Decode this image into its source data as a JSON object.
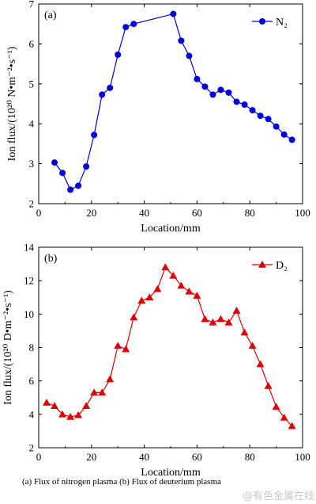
{
  "chart_data": [
    {
      "type": "line",
      "panel_label": "(a)",
      "xlabel": "Location/mm",
      "ylabel": "Ion flux/(10²⁰ N•m⁻²•s⁻¹)",
      "xlim": [
        0,
        100
      ],
      "ylim": [
        2,
        7
      ],
      "xticks": [
        0,
        20,
        40,
        60,
        80,
        100
      ],
      "yticks": [
        2,
        3,
        4,
        5,
        6,
        7
      ],
      "legend_position": "top-right",
      "color": "#0000dd",
      "marker": "circle",
      "series": [
        {
          "name": "N₂",
          "x": [
            6,
            9,
            12,
            15,
            18,
            21,
            24,
            27,
            30,
            33,
            36,
            51,
            54,
            57,
            60,
            63,
            66,
            69,
            72,
            75,
            78,
            81,
            84,
            87,
            90,
            93,
            96
          ],
          "y": [
            3.03,
            2.77,
            2.35,
            2.45,
            2.93,
            3.72,
            4.73,
            4.9,
            5.73,
            6.42,
            6.5,
            6.75,
            6.08,
            5.7,
            5.12,
            4.93,
            4.73,
            4.85,
            4.78,
            4.55,
            4.48,
            4.34,
            4.2,
            4.12,
            3.93,
            3.73,
            3.6
          ]
        }
      ]
    },
    {
      "type": "line",
      "panel_label": "(b)",
      "xlabel": "Location/mm",
      "ylabel": "Ion flux/(10²⁰ D•m⁻²•s⁻¹)",
      "xlim": [
        0,
        100
      ],
      "ylim": [
        2,
        14
      ],
      "xticks": [
        0,
        20,
        40,
        60,
        80,
        100
      ],
      "yticks": [
        2,
        4,
        6,
        8,
        10,
        12,
        14
      ],
      "legend_position": "top-right",
      "color": "#dd0000",
      "marker": "triangle",
      "series": [
        {
          "name": "D₂",
          "x": [
            3,
            6,
            9,
            12,
            15,
            18,
            21,
            24,
            27,
            30,
            33,
            36,
            39,
            42,
            45,
            48,
            51,
            54,
            57,
            60,
            63,
            66,
            69,
            72,
            75,
            78,
            81,
            84,
            87,
            90,
            93,
            96
          ],
          "y": [
            4.7,
            4.5,
            4.0,
            3.85,
            3.95,
            4.5,
            5.3,
            5.3,
            6.1,
            8.1,
            7.9,
            9.8,
            10.8,
            11.0,
            11.5,
            12.8,
            12.3,
            11.7,
            11.35,
            11.1,
            9.7,
            9.5,
            9.7,
            9.5,
            10.2,
            8.9,
            8.1,
            7.0,
            5.7,
            4.45,
            3.8,
            3.3
          ]
        }
      ]
    }
  ],
  "caption": "(a)  Flux  of  nitrogen plasma (b) Flux of deuterium plasma",
  "watermark": "@有色金属在线"
}
